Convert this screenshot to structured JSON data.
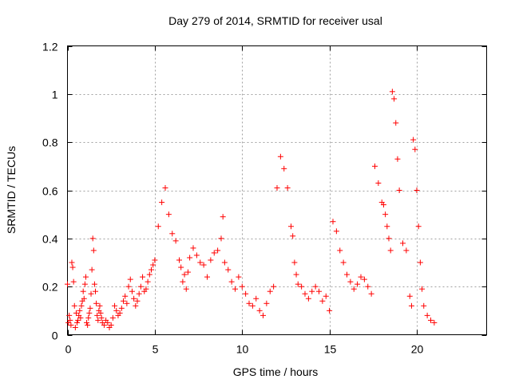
{
  "chart_data": {
    "type": "scatter",
    "title": "Day 279 of 2014, SRMTID for receiver usal",
    "xlabel": "GPS time / hours",
    "ylabel": "SRMTID / TECUs",
    "xlim": [
      0,
      24
    ],
    "ylim": [
      0,
      1.2
    ],
    "x_ticks": [
      0,
      5,
      10,
      15,
      20
    ],
    "x_tick_labels": [
      "0",
      "5",
      "10",
      "15",
      "20"
    ],
    "y_ticks": [
      0,
      0.2,
      0.4,
      0.6,
      0.8,
      1.0,
      1.2
    ],
    "y_tick_labels": [
      "0",
      "0.2",
      "0.4",
      "0.6",
      "0.8",
      "1",
      "1.2"
    ],
    "grid": true,
    "marker": "+",
    "series": [
      {
        "name": "SRMTID",
        "color": "#ff0000",
        "x": [
          0.0,
          0.05,
          0.1,
          0.15,
          0.2,
          0.25,
          0.3,
          0.35,
          0.4,
          0.45,
          0.5,
          0.55,
          0.6,
          0.65,
          0.7,
          0.75,
          0.8,
          0.85,
          0.9,
          0.95,
          1.0,
          1.05,
          1.1,
          1.15,
          1.2,
          1.25,
          1.3,
          1.35,
          1.4,
          1.45,
          1.5,
          1.55,
          1.6,
          1.65,
          1.7,
          1.75,
          1.8,
          1.85,
          1.9,
          1.95,
          2.0,
          2.1,
          2.2,
          2.3,
          2.4,
          2.5,
          2.6,
          2.7,
          2.8,
          2.9,
          3.0,
          3.1,
          3.2,
          3.3,
          3.4,
          3.5,
          3.6,
          3.7,
          3.8,
          3.9,
          4.0,
          4.1,
          4.2,
          4.3,
          4.4,
          4.5,
          4.6,
          4.7,
          4.8,
          4.9,
          5.0,
          5.2,
          5.4,
          5.6,
          5.8,
          6.0,
          6.2,
          6.4,
          6.5,
          6.6,
          6.7,
          6.8,
          6.9,
          7.0,
          7.2,
          7.4,
          7.6,
          7.8,
          8.0,
          8.2,
          8.4,
          8.6,
          8.8,
          8.9,
          9.0,
          9.2,
          9.4,
          9.6,
          9.8,
          10.0,
          10.2,
          10.4,
          10.6,
          10.8,
          11.0,
          11.2,
          11.4,
          11.6,
          11.8,
          12.0,
          12.2,
          12.4,
          12.6,
          12.8,
          12.9,
          13.0,
          13.1,
          13.2,
          13.4,
          13.6,
          13.8,
          14.0,
          14.2,
          14.4,
          14.6,
          14.8,
          15.0,
          15.2,
          15.4,
          15.6,
          15.8,
          16.0,
          16.2,
          16.4,
          16.6,
          16.8,
          17.0,
          17.2,
          17.4,
          17.6,
          17.8,
          18.0,
          18.1,
          18.2,
          18.3,
          18.4,
          18.5,
          18.6,
          18.7,
          18.8,
          18.9,
          19.0,
          19.2,
          19.4,
          19.6,
          19.7,
          19.8,
          19.9,
          20.0,
          20.1,
          20.2,
          20.3,
          20.4,
          20.6,
          20.8,
          21.0
        ],
        "y": [
          0.21,
          0.05,
          0.08,
          0.06,
          0.04,
          0.3,
          0.28,
          0.22,
          0.12,
          0.03,
          0.09,
          0.05,
          0.06,
          0.08,
          0.1,
          0.07,
          0.12,
          0.14,
          0.18,
          0.15,
          0.21,
          0.24,
          0.05,
          0.04,
          0.07,
          0.09,
          0.11,
          0.17,
          0.27,
          0.4,
          0.35,
          0.21,
          0.18,
          0.13,
          0.08,
          0.06,
          0.1,
          0.12,
          0.09,
          0.07,
          0.05,
          0.04,
          0.06,
          0.05,
          0.03,
          0.04,
          0.07,
          0.12,
          0.1,
          0.08,
          0.09,
          0.11,
          0.14,
          0.16,
          0.13,
          0.2,
          0.23,
          0.18,
          0.15,
          0.12,
          0.14,
          0.17,
          0.2,
          0.24,
          0.18,
          0.19,
          0.22,
          0.25,
          0.27,
          0.29,
          0.31,
          0.45,
          0.55,
          0.61,
          0.5,
          0.42,
          0.39,
          0.31,
          0.28,
          0.22,
          0.25,
          0.19,
          0.26,
          0.32,
          0.36,
          0.33,
          0.3,
          0.29,
          0.24,
          0.31,
          0.34,
          0.35,
          0.4,
          0.49,
          0.3,
          0.27,
          0.22,
          0.19,
          0.24,
          0.2,
          0.17,
          0.13,
          0.12,
          0.15,
          0.1,
          0.08,
          0.13,
          0.18,
          0.2,
          0.61,
          0.74,
          0.69,
          0.61,
          0.45,
          0.41,
          0.3,
          0.25,
          0.21,
          0.2,
          0.17,
          0.15,
          0.18,
          0.2,
          0.18,
          0.14,
          0.16,
          0.1,
          0.47,
          0.43,
          0.35,
          0.3,
          0.25,
          0.22,
          0.19,
          0.21,
          0.24,
          0.23,
          0.2,
          0.17,
          0.7,
          0.63,
          0.55,
          0.54,
          0.5,
          0.45,
          0.4,
          0.35,
          1.01,
          0.98,
          0.88,
          0.73,
          0.6,
          0.38,
          0.35,
          0.16,
          0.12,
          0.81,
          0.77,
          0.6,
          0.45,
          0.3,
          0.19,
          0.12,
          0.08,
          0.06,
          0.05
        ]
      }
    ]
  }
}
